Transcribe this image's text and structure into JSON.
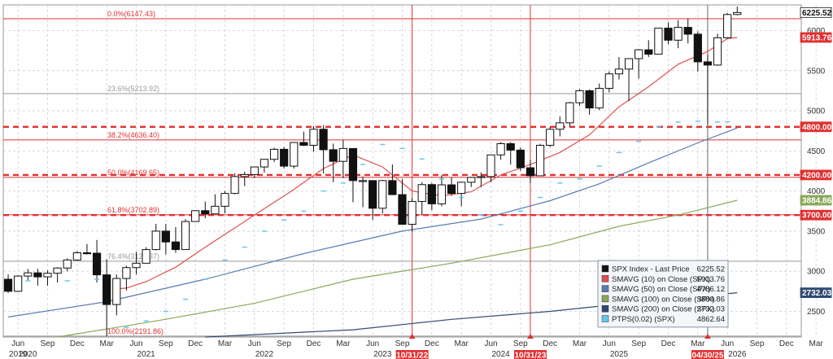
{
  "chart_data": {
    "type": "candlestick",
    "title": "",
    "xlabel": "",
    "ylabel": "",
    "ylim": [
      2180,
      6320
    ],
    "x_months": [
      "Jun",
      "Sep",
      "Dec",
      "Mar",
      "Jun",
      "Sep",
      "Dec",
      "Mar",
      "Jun",
      "Sep",
      "Dec",
      "Mar",
      "Jun",
      "Sep",
      "Dec",
      "Mar",
      "Jun",
      "Sep",
      "Dec",
      "Mar",
      "Jun",
      "Sep",
      "Dec",
      "Mar",
      "Jun",
      "Sep",
      "Dec",
      "Mar"
    ],
    "x_years": [
      "2019",
      "2020",
      "2021",
      "2022",
      "2023",
      "2024",
      "2025",
      "2026"
    ],
    "y_ticks": [
      2500,
      3000,
      3500,
      4000,
      4500,
      5000,
      5500,
      6000
    ],
    "monthly_candles": [
      {
        "o": 2900,
        "h": 2960,
        "l": 2730,
        "c": 2750
      },
      {
        "o": 2750,
        "h": 2950,
        "l": 2740,
        "c": 2940
      },
      {
        "o": 2940,
        "h": 3030,
        "l": 2890,
        "c": 2980
      },
      {
        "o": 2980,
        "h": 3030,
        "l": 2820,
        "c": 2930
      },
      {
        "o": 2930,
        "h": 3010,
        "l": 2820,
        "c": 2975
      },
      {
        "o": 2975,
        "h": 3050,
        "l": 2860,
        "c": 3040
      },
      {
        "o": 3040,
        "h": 3160,
        "l": 3000,
        "c": 3140
      },
      {
        "o": 3140,
        "h": 3250,
        "l": 3130,
        "c": 3230
      },
      {
        "o": 3230,
        "h": 3340,
        "l": 3210,
        "c": 3225
      },
      {
        "o": 3225,
        "h": 3390,
        "l": 2860,
        "c": 2955
      },
      {
        "o": 2955,
        "h": 3150,
        "l": 2190,
        "c": 2585
      },
      {
        "o": 2585,
        "h": 2960,
        "l": 2450,
        "c": 2910
      },
      {
        "o": 2910,
        "h": 3070,
        "l": 2760,
        "c": 3045
      },
      {
        "o": 3045,
        "h": 3240,
        "l": 2960,
        "c": 3100
      },
      {
        "o": 3100,
        "h": 3300,
        "l": 3100,
        "c": 3270
      },
      {
        "o": 3270,
        "h": 3590,
        "l": 3260,
        "c": 3500
      },
      {
        "o": 3500,
        "h": 3590,
        "l": 3210,
        "c": 3365
      },
      {
        "o": 3365,
        "h": 3550,
        "l": 3230,
        "c": 3270
      },
      {
        "o": 3270,
        "h": 3650,
        "l": 3280,
        "c": 3620
      },
      {
        "o": 3620,
        "h": 3760,
        "l": 3630,
        "c": 3755
      },
      {
        "o": 3755,
        "h": 3870,
        "l": 3660,
        "c": 3715
      },
      {
        "o": 3715,
        "h": 3960,
        "l": 3720,
        "c": 3810
      },
      {
        "o": 3810,
        "h": 4000,
        "l": 3720,
        "c": 3970
      },
      {
        "o": 3970,
        "h": 4220,
        "l": 3960,
        "c": 4180
      },
      {
        "o": 4180,
        "h": 4240,
        "l": 4060,
        "c": 4205
      },
      {
        "o": 4205,
        "h": 4260,
        "l": 4160,
        "c": 4300
      },
      {
        "o": 4300,
        "h": 4400,
        "l": 4230,
        "c": 4395
      },
      {
        "o": 4395,
        "h": 4540,
        "l": 4360,
        "c": 4520
      },
      {
        "o": 4520,
        "h": 4550,
        "l": 4280,
        "c": 4310
      },
      {
        "o": 4310,
        "h": 4610,
        "l": 4280,
        "c": 4605
      },
      {
        "o": 4605,
        "h": 4740,
        "l": 4560,
        "c": 4570
      },
      {
        "o": 4570,
        "h": 4810,
        "l": 4490,
        "c": 4770
      },
      {
        "o": 4770,
        "h": 4820,
        "l": 4220,
        "c": 4515
      },
      {
        "o": 4515,
        "h": 4590,
        "l": 4110,
        "c": 4370
      },
      {
        "o": 4370,
        "h": 4640,
        "l": 4160,
        "c": 4530
      },
      {
        "o": 4530,
        "h": 4520,
        "l": 3860,
        "c": 4130
      },
      {
        "o": 4130,
        "h": 4180,
        "l": 3800,
        "c": 4130
      },
      {
        "o": 4130,
        "h": 3960,
        "l": 3640,
        "c": 3785
      },
      {
        "o": 3785,
        "h": 4140,
        "l": 3720,
        "c": 4130
      },
      {
        "o": 4130,
        "h": 4330,
        "l": 3950,
        "c": 3955
      },
      {
        "o": 3955,
        "h": 4150,
        "l": 3580,
        "c": 3585
      },
      {
        "o": 3585,
        "h": 3910,
        "l": 3490,
        "c": 3870
      },
      {
        "o": 3870,
        "h": 4110,
        "l": 3700,
        "c": 4080
      },
      {
        "o": 4080,
        "h": 4100,
        "l": 3760,
        "c": 3840
      },
      {
        "o": 3840,
        "h": 4200,
        "l": 3810,
        "c": 4077
      },
      {
        "o": 4077,
        "h": 4170,
        "l": 3940,
        "c": 3970
      },
      {
        "o": 3970,
        "h": 4110,
        "l": 3810,
        "c": 4109
      },
      {
        "o": 4109,
        "h": 4170,
        "l": 4050,
        "c": 4169
      },
      {
        "o": 4169,
        "h": 4230,
        "l": 4050,
        "c": 4180
      },
      {
        "o": 4180,
        "h": 4450,
        "l": 4110,
        "c": 4450
      },
      {
        "o": 4450,
        "h": 4610,
        "l": 4390,
        "c": 4590
      },
      {
        "o": 4590,
        "h": 4610,
        "l": 4330,
        "c": 4510
      },
      {
        "o": 4510,
        "h": 4540,
        "l": 4250,
        "c": 4290
      },
      {
        "o": 4290,
        "h": 4390,
        "l": 4100,
        "c": 4190
      },
      {
        "o": 4190,
        "h": 4590,
        "l": 4200,
        "c": 4570
      },
      {
        "o": 4570,
        "h": 4800,
        "l": 4550,
        "c": 4770
      },
      {
        "o": 4770,
        "h": 4930,
        "l": 4680,
        "c": 4850
      },
      {
        "o": 4850,
        "h": 5110,
        "l": 4800,
        "c": 5100
      },
      {
        "o": 5100,
        "h": 5270,
        "l": 5060,
        "c": 5250
      },
      {
        "o": 5250,
        "h": 5265,
        "l": 4950,
        "c": 5035
      },
      {
        "o": 5035,
        "h": 5340,
        "l": 5010,
        "c": 5280
      },
      {
        "o": 5280,
        "h": 5490,
        "l": 5230,
        "c": 5460
      },
      {
        "o": 5460,
        "h": 5670,
        "l": 5390,
        "c": 5520
      },
      {
        "o": 5520,
        "h": 5650,
        "l": 5120,
        "c": 5650
      },
      {
        "o": 5650,
        "h": 5770,
        "l": 5400,
        "c": 5760
      },
      {
        "o": 5760,
        "h": 5880,
        "l": 5670,
        "c": 5705
      },
      {
        "o": 5705,
        "h": 6020,
        "l": 5700,
        "c": 6030
      },
      {
        "o": 6030,
        "h": 6100,
        "l": 5830,
        "c": 5880
      },
      {
        "o": 5880,
        "h": 6130,
        "l": 5780,
        "c": 6040
      },
      {
        "o": 6040,
        "h": 6150,
        "l": 5840,
        "c": 5955
      },
      {
        "o": 5955,
        "h": 5990,
        "l": 5490,
        "c": 5610
      },
      {
        "o": 5610,
        "h": 5700,
        "l": 4830,
        "c": 5570
      },
      {
        "o": 5570,
        "h": 5960,
        "l": 5560,
        "c": 5910
      },
      {
        "o": 5910,
        "h": 6220,
        "l": 5900,
        "c": 6200
      },
      {
        "o": 6200,
        "h": 6300,
        "l": 6190,
        "c": 6225
      }
    ],
    "fib_levels": [
      {
        "label": "0.0%(6147.43)",
        "value": 6147.43
      },
      {
        "label": "23.6%(5213.92)",
        "value": 5213.92
      },
      {
        "label": "38.2%(4636.40)",
        "value": 4636.4
      },
      {
        "label": "50.0%(4169.65)",
        "value": 4169.65
      },
      {
        "label": "61.8%(3702.89)",
        "value": 3702.89
      },
      {
        "label": "76.4%(3125.37)",
        "value": 3125.37
      },
      {
        "label": "100.0%(2191.86)",
        "value": 2191.86
      }
    ],
    "dashed_levels": [
      4800,
      4200,
      3700
    ],
    "vertical_markers": [
      "10/31/22",
      "10/31/23",
      "04/30/25"
    ],
    "legend": [
      {
        "name": "SPX Index - Last Price",
        "value": "6225.52",
        "color": "#111111"
      },
      {
        "name": "SMAVG (10)  on Close (SPX)",
        "value": "5913.76",
        "color": "#e05050"
      },
      {
        "name": "SMAVG (50)  on Close (SPX)",
        "value": "4786.12",
        "color": "#5a7bb0"
      },
      {
        "name": "SMAVG (100)  on Close (SPX)",
        "value": "3884.86",
        "color": "#8aa85a"
      },
      {
        "name": "SMAVG (200)  on Close (SPX)",
        "value": "2732.03",
        "color": "#2f4a72"
      },
      {
        "name": "PTPS(0.02) (SPX)",
        "value": "4862.64",
        "color": "#66c6f0"
      }
    ],
    "right_badges": [
      {
        "text": "6225.52",
        "value": 6225.52,
        "bg": "#ffffff",
        "fg": "#111111"
      },
      {
        "text": "5913.76",
        "value": 5913.76,
        "bg": "#e03030",
        "fg": "#ffffff"
      },
      {
        "text": "4800.00",
        "value": 4800,
        "bg": "#e03030",
        "fg": "#ffffff"
      },
      {
        "text": "4200.00",
        "value": 4200,
        "bg": "#e03030",
        "fg": "#ffffff"
      },
      {
        "text": "3884.86",
        "value": 3884.86,
        "bg": "#8aa85a",
        "fg": "#ffffff"
      },
      {
        "text": "3700.00",
        "value": 3700,
        "bg": "#e03030",
        "fg": "#ffffff"
      },
      {
        "text": "2732.03",
        "value": 2732.03,
        "bg": "#2f4a72",
        "fg": "#ffffff"
      }
    ],
    "colors": {
      "up": "#ffffff",
      "down": "#111111",
      "sma10": "#e05050",
      "sma50": "#5a7bb0",
      "sma100": "#8aa85a",
      "sma200": "#2f4a72",
      "ptps": "#66c6f0",
      "fib": "#e03030",
      "marker": "#e03030"
    }
  }
}
